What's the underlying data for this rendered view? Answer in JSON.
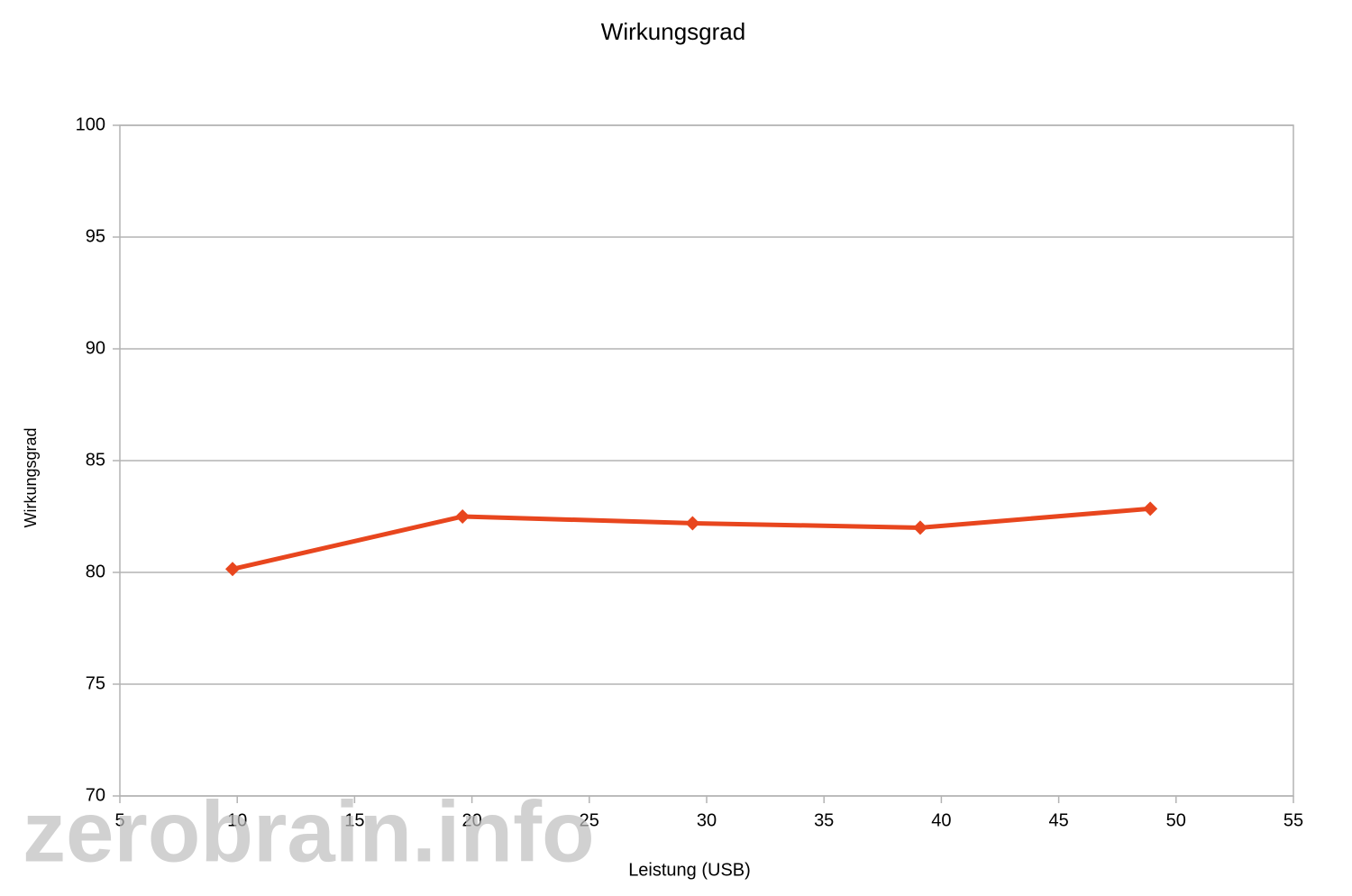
{
  "chart_data": {
    "type": "line",
    "title": "Wirkungsgrad",
    "x_label": "Leistung (USB)",
    "y_label": "Wirkungsgrad",
    "x": [
      9.8,
      19.6,
      29.4,
      39.1,
      48.9
    ],
    "series": [
      {
        "name": "Wirkungsgrad",
        "color": "#e8461e",
        "values": [
          80.15,
          82.5,
          82.2,
          82.0,
          82.85
        ]
      }
    ],
    "xlim": [
      5,
      55
    ],
    "xticks": [
      5,
      10,
      15,
      20,
      25,
      30,
      35,
      40,
      45,
      50,
      55
    ],
    "ylim": [
      70,
      100
    ],
    "yticks": [
      70,
      75,
      80,
      85,
      90,
      95,
      100
    ],
    "grid": true,
    "watermark": "zerobrain.info"
  }
}
